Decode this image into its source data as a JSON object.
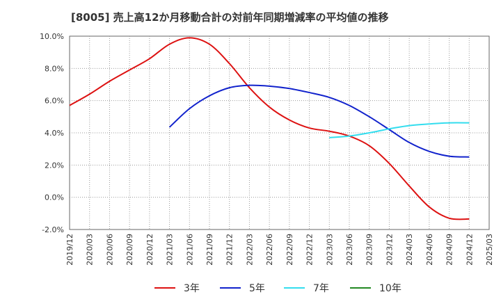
{
  "chart_data": {
    "type": "line",
    "title": "[8005]  売上高12か月移動合計の対前年同期増減率の平均値の推移",
    "xlabel": "",
    "ylabel": "",
    "ylim": [
      -2.0,
      10.0
    ],
    "y_ticks": [
      "-2.0%",
      "0.0%",
      "2.0%",
      "4.0%",
      "6.0%",
      "8.0%",
      "10.0%"
    ],
    "y_tick_values": [
      -2,
      0,
      2,
      4,
      6,
      8,
      10
    ],
    "x_ticks": [
      "2019/12",
      "2020/03",
      "2020/06",
      "2020/09",
      "2020/12",
      "2021/03",
      "2021/06",
      "2021/09",
      "2021/12",
      "2022/03",
      "2022/06",
      "2022/09",
      "2022/12",
      "2023/03",
      "2023/06",
      "2023/09",
      "2023/12",
      "2024/03",
      "2024/06",
      "2024/09",
      "2024/12",
      "2025/03"
    ],
    "grid": true,
    "legend_position": "bottom",
    "series": [
      {
        "name": "3年",
        "color": "#dd1111",
        "x": [
          "2019/12",
          "2020/03",
          "2020/06",
          "2020/09",
          "2020/12",
          "2021/03",
          "2021/06",
          "2021/09",
          "2021/12",
          "2022/03",
          "2022/06",
          "2022/09",
          "2022/12",
          "2023/03",
          "2023/06",
          "2023/09",
          "2023/12",
          "2024/03",
          "2024/06",
          "2024/09",
          "2024/12"
        ],
        "values": [
          5.7,
          6.4,
          7.2,
          7.9,
          8.6,
          9.5,
          9.9,
          9.5,
          8.3,
          6.8,
          5.6,
          4.8,
          4.3,
          4.1,
          3.8,
          3.2,
          2.1,
          0.7,
          -0.6,
          -1.3,
          -1.35
        ]
      },
      {
        "name": "5年",
        "color": "#1122cc",
        "x": [
          "2021/03",
          "2021/06",
          "2021/09",
          "2021/12",
          "2022/03",
          "2022/06",
          "2022/09",
          "2022/12",
          "2023/03",
          "2023/06",
          "2023/09",
          "2023/12",
          "2024/03",
          "2024/06",
          "2024/09",
          "2024/12"
        ],
        "values": [
          4.35,
          5.5,
          6.3,
          6.8,
          6.95,
          6.9,
          6.75,
          6.5,
          6.2,
          5.7,
          5.0,
          4.2,
          3.4,
          2.85,
          2.55,
          2.5
        ]
      },
      {
        "name": "7年",
        "color": "#33ddee",
        "x": [
          "2023/03",
          "2023/06",
          "2023/09",
          "2023/12",
          "2024/03",
          "2024/06",
          "2024/09",
          "2024/12"
        ],
        "values": [
          3.7,
          3.8,
          4.0,
          4.25,
          4.45,
          4.55,
          4.62,
          4.62
        ]
      },
      {
        "name": "10年",
        "color": "#228822",
        "x": [],
        "values": []
      }
    ]
  }
}
